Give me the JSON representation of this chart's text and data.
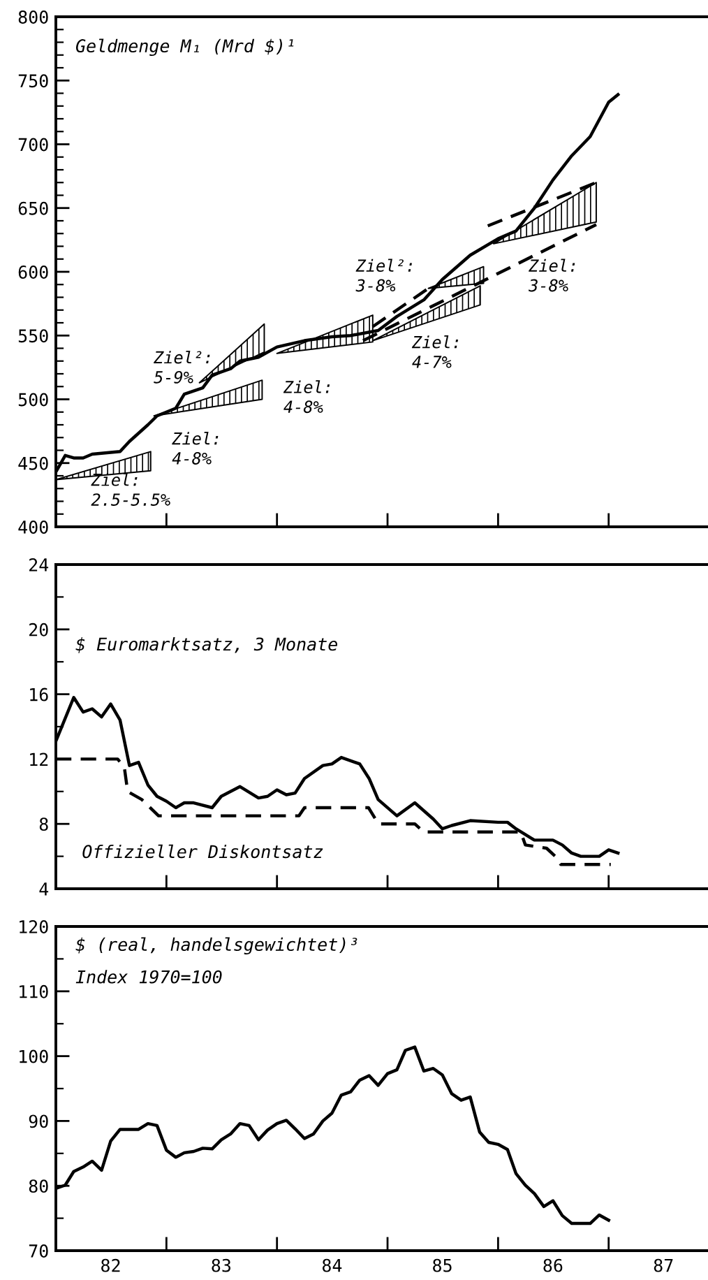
{
  "chart_data": [
    {
      "type": "line",
      "title": "Geldmenge M₁ (Mrd $)¹",
      "xlim": [
        "1982-01-01",
        "1987-11-25"
      ],
      "xticks": [
        {
          "value": "1983-01-01",
          "label": null
        },
        {
          "value": "1984-01-01",
          "label": null
        },
        {
          "value": "1985-01-01",
          "label": null
        },
        {
          "value": "1986-01-01",
          "label": null
        },
        {
          "value": "1987-01-01",
          "label": null
        }
      ],
      "ylim": [
        400,
        800
      ],
      "yticks": [
        400,
        450,
        500,
        550,
        600,
        650,
        700,
        750,
        800,
        {
          "value": 410,
          "label": null
        },
        {
          "value": 420,
          "label": null
        },
        {
          "value": 430,
          "label": null
        },
        {
          "value": 440,
          "label": null
        },
        {
          "value": 460,
          "label": null
        },
        {
          "value": 470,
          "label": null
        },
        {
          "value": 480,
          "label": null
        },
        {
          "value": 490,
          "label": null
        },
        {
          "value": 510,
          "label": null
        },
        {
          "value": 520,
          "label": null
        },
        {
          "value": 530,
          "label": null
        },
        {
          "value": 540,
          "label": null
        },
        {
          "value": 560,
          "label": null
        },
        {
          "value": 570,
          "label": null
        },
        {
          "value": 580,
          "label": null
        },
        {
          "value": 590,
          "label": null
        },
        {
          "value": 610,
          "label": null
        },
        {
          "value": 620,
          "label": null
        },
        {
          "value": 630,
          "label": null
        },
        {
          "value": 640,
          "label": null
        },
        {
          "value": 660,
          "label": null
        },
        {
          "value": 670,
          "label": null
        },
        {
          "value": 680,
          "label": null
        },
        {
          "value": 690,
          "label": null
        },
        {
          "value": 710,
          "label": null
        },
        {
          "value": 720,
          "label": null
        },
        {
          "value": 730,
          "label": null
        },
        {
          "value": 740,
          "label": null
        },
        {
          "value": 760,
          "label": null
        },
        {
          "value": 770,
          "label": null
        },
        {
          "value": 780,
          "label": null
        },
        {
          "value": 790,
          "label": null
        }
      ],
      "tick_labels": "y",
      "grid": false,
      "series": [
        {
          "color": "#000000",
          "x": [
            "1982-01",
            "1982-02",
            "1982-03",
            "1982-04",
            "1982-05",
            "1982-08",
            "1982-09",
            "1982-11",
            "1982-12",
            "1983-02",
            "1983-03",
            "1983-05",
            "1983-06",
            "1983-08",
            "1983-09",
            "1983-11",
            "1984-01",
            "1984-04",
            "1984-07",
            "1984-09",
            "1984-12",
            "1985-02",
            "1985-05",
            "1985-07",
            "1985-10",
            "1986-01",
            "1986-03",
            "1986-05",
            "1986-07",
            "1986-09",
            "1986-11",
            "1987-01",
            "1987-02"
          ],
          "values": [
            443,
            456,
            454,
            454,
            457,
            459,
            467,
            480,
            487,
            493,
            504,
            509,
            519,
            524,
            530,
            533,
            541,
            546,
            549,
            550,
            554,
            565,
            578,
            594,
            613,
            626,
            632,
            650,
            672,
            691,
            706,
            733,
            739
          ]
        },
        {
          "type": "area",
          "color": "#000000",
          "x": [
            "1982-01-01",
            "1982-11-10"
          ],
          "values": [
            null,
            null
          ],
          "lower": [
            437,
            444
          ],
          "upper": [
            437,
            459
          ]
        },
        {
          "type": "area",
          "color": "#000000",
          "x": [
            "1982-11-21",
            "1983-11-13"
          ],
          "values": [
            null,
            null
          ],
          "lower": [
            487,
            500
          ],
          "upper": [
            487,
            515
          ]
        },
        {
          "type": "area",
          "color": "#000000",
          "x": [
            "1983-04-20",
            "1983-11-20"
          ],
          "values": [
            null,
            null
          ],
          "lower": [
            513,
            537
          ],
          "upper": [
            513,
            559
          ]
        },
        {
          "type": "area",
          "color": "#000000",
          "x": [
            "1984-01-01",
            "1984-11-13"
          ],
          "values": [
            null,
            null
          ],
          "lower": [
            536,
            545
          ],
          "upper": [
            536,
            566
          ]
        },
        {
          "type": "area",
          "color": "#000000",
          "x": [
            "1985-05-16",
            "1985-11-14"
          ],
          "values": [
            null,
            null
          ],
          "lower": [
            587,
            591
          ],
          "upper": [
            587,
            604
          ]
        },
        {
          "type": "area",
          "color": "#000000",
          "x": [
            "1984-11-13",
            "1985-11-03"
          ],
          "values": [
            null,
            null
          ],
          "lower": [
            546,
            574
          ],
          "upper": [
            546,
            589
          ]
        },
        {
          "type": "area",
          "color": "#000000",
          "x": [
            "1985-12-17",
            "1986-11-21"
          ],
          "values": [
            null,
            null
          ],
          "lower": [
            622,
            639
          ],
          "upper": [
            622,
            670
          ]
        },
        {
          "line_style": "dashed",
          "color": "#000000",
          "x": [
            "1984-10-12",
            "1986-11-21"
          ],
          "values": [
            546,
            637
          ]
        },
        {
          "line_style": "dashed",
          "color": "#000000",
          "x": [
            "1985-11-28",
            "1986-11-21"
          ],
          "values": [
            636,
            670
          ]
        },
        {
          "line_style": "dashed",
          "color": "#000000",
          "x": [
            "1984-11-13",
            "1985-05-16"
          ],
          "values": [
            557,
            587
          ]
        }
      ],
      "annotations": [
        "Ziel:\n2.5-5.5%",
        "Ziel:\n4-8%",
        "Ziel²:\n5-9%",
        "Ziel:\n4-8%",
        "Ziel²:\n3-8%",
        "Ziel:\n4-7%",
        "Ziel:\n3-8%"
      ]
    },
    {
      "type": "line",
      "xlim": [
        "1982-01-01",
        "1987-11-25"
      ],
      "xticks": [
        {
          "value": "1983-01-01",
          "label": null
        },
        {
          "value": "1984-01-01",
          "label": null
        },
        {
          "value": "1985-01-01",
          "label": null
        },
        {
          "value": "1986-01-01",
          "label": null
        },
        {
          "value": "1987-01-01",
          "label": null
        }
      ],
      "ylim": [
        4,
        24
      ],
      "yticks": [
        4,
        8,
        12,
        16,
        20,
        24,
        {
          "value": 6,
          "label": null
        },
        {
          "value": 10,
          "label": null
        },
        {
          "value": 14,
          "label": null
        },
        {
          "value": 18,
          "label": null
        },
        {
          "value": 22,
          "label": null
        }
      ],
      "tick_labels": "y",
      "grid": false,
      "series": [
        {
          "name": "$ Euromarktsatz, 3 Monate",
          "line_style": "solid",
          "color": "#000000",
          "x": [
            "1982-01",
            "1982-03",
            "1982-04",
            "1982-05",
            "1982-06",
            "1982-07",
            "1982-08",
            "1982-09",
            "1982-10",
            "1982-11",
            "1982-12",
            "1983-01",
            "1983-02",
            "1983-03",
            "1983-04",
            "1983-06",
            "1983-07",
            "1983-09",
            "1983-11",
            "1983-12",
            "1984-01",
            "1984-02",
            "1984-03",
            "1984-04",
            "1984-06",
            "1984-07",
            "1984-08",
            "1984-10",
            "1984-11",
            "1984-12",
            "1985-02",
            "1985-04",
            "1985-06",
            "1985-07",
            "1985-08",
            "1985-10",
            "1986-01",
            "1986-02",
            "1986-03",
            "1986-05",
            "1986-06",
            "1986-07",
            "1986-08",
            "1986-09",
            "1986-10",
            "1986-12",
            "1987-01",
            "1987-02"
          ],
          "values": [
            13.1,
            15.8,
            14.9,
            15.1,
            14.6,
            15.4,
            14.4,
            11.6,
            11.8,
            10.4,
            9.7,
            9.4,
            9.0,
            9.3,
            9.3,
            9.0,
            9.7,
            10.3,
            9.6,
            9.7,
            10.1,
            9.8,
            9.9,
            10.8,
            11.6,
            11.7,
            12.1,
            11.7,
            10.8,
            9.5,
            8.5,
            9.3,
            8.3,
            7.7,
            7.9,
            8.2,
            8.1,
            8.1,
            7.7,
            7.0,
            7.0,
            7.0,
            6.7,
            6.2,
            6.0,
            6.0,
            6.4,
            6.2
          ]
        },
        {
          "name": "Offizieller Diskontsatz",
          "line_style": "dashed",
          "color": "#000000",
          "x": [
            "1982-01-01",
            "1982-07-24",
            "1982-08-15",
            "1982-08-26",
            "1982-10-12",
            "1982-12-06",
            "1984-03-14",
            "1984-04-01",
            "1984-10-30",
            "1984-12-02",
            "1985-04-01",
            "1985-05-01",
            "1986-03-17",
            "1986-04-01",
            "1986-06-10",
            "1986-07-09",
            "1986-07-27",
            "1987-01-08"
          ],
          "values": [
            12,
            12,
            11.5,
            10,
            9.5,
            8.5,
            8.5,
            9,
            9,
            8,
            8,
            7.5,
            7.5,
            6.7,
            6.5,
            6,
            5.5,
            5.5
          ]
        }
      ]
    },
    {
      "type": "line",
      "title": "$ (real, handelsgewichtet)³",
      "subtitle": "Index 1970=100",
      "xlim": [
        "1982-01-01",
        "1987-11-25"
      ],
      "xticks": [
        {
          "value": "1983-01-01",
          "label": null
        },
        {
          "value": "1984-01-01",
          "label": null
        },
        {
          "value": "1985-01-01",
          "label": null
        },
        {
          "value": "1986-01-01",
          "label": null
        },
        {
          "value": "1987-01-01",
          "label": null
        },
        {
          "value": "1982-07-01",
          "label": "82"
        },
        {
          "value": "1983-07-01",
          "label": "83"
        },
        {
          "value": "1984-07-01",
          "label": "84"
        },
        {
          "value": "1985-07-01",
          "label": "85"
        },
        {
          "value": "1986-07-01",
          "label": "86"
        },
        {
          "value": "1987-07-01",
          "label": "87"
        }
      ],
      "ylim": [
        70,
        120
      ],
      "yticks": [
        70,
        80,
        90,
        100,
        110,
        120,
        {
          "value": 75,
          "label": null
        },
        {
          "value": 85,
          "label": null
        },
        {
          "value": 95,
          "label": null
        },
        {
          "value": 105,
          "label": null
        },
        {
          "value": 115,
          "label": null
        }
      ],
      "grid": false,
      "series": [
        {
          "color": "#000000",
          "x": [
            "1982-01",
            "1982-02",
            "1982-03",
            "1982-04",
            "1982-05",
            "1982-06",
            "1982-07",
            "1982-08",
            "1982-09",
            "1982-10",
            "1982-11",
            "1982-12",
            "1983-01",
            "1983-02",
            "1983-03",
            "1983-04",
            "1983-05",
            "1983-06",
            "1983-07",
            "1983-08",
            "1983-09",
            "1983-10",
            "1983-11",
            "1983-12",
            "1984-01",
            "1984-02",
            "1984-03",
            "1984-04",
            "1984-05",
            "1984-06",
            "1984-07",
            "1984-08",
            "1984-09",
            "1984-10",
            "1984-11",
            "1984-12",
            "1985-01",
            "1985-02",
            "1985-03",
            "1985-04",
            "1985-05",
            "1985-06",
            "1985-07",
            "1985-08",
            "1985-09",
            "1985-10",
            "1985-11",
            "1985-12",
            "1986-01",
            "1986-02",
            "1986-03",
            "1986-04",
            "1986-05",
            "1986-06",
            "1986-07",
            "1986-08",
            "1986-09",
            "1986-11",
            "1986-12",
            "1987-01"
          ],
          "values": [
            79.6,
            80.1,
            82.2,
            82.9,
            83.8,
            82.4,
            86.9,
            88.7,
            88.7,
            88.7,
            89.6,
            89.3,
            85.5,
            84.4,
            85.1,
            85.3,
            85.8,
            85.7,
            87.1,
            88.0,
            89.6,
            89.3,
            87.1,
            88.6,
            89.6,
            90.1,
            88.8,
            87.3,
            88.0,
            90.0,
            91.2,
            94.0,
            94.5,
            96.3,
            97.0,
            95.5,
            97.3,
            97.9,
            100.9,
            101.4,
            97.7,
            98.1,
            97.1,
            94.2,
            93.2,
            93.7,
            88.3,
            86.7,
            86.4,
            85.6,
            81.9,
            80.1,
            78.8,
            76.8,
            77.7,
            75.4,
            74.2,
            74.2,
            75.5,
            74.7
          ]
        }
      ]
    }
  ]
}
